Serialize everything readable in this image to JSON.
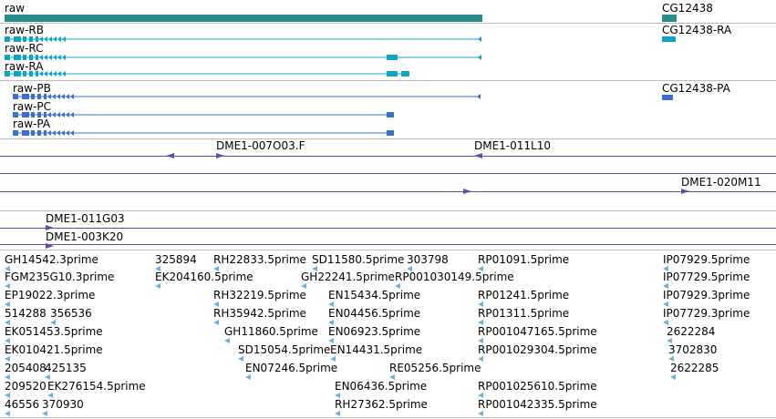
{
  "colors": {
    "gene": "#2a8c8c",
    "transcript": "#11a3c0",
    "protein": "#3a6fd0",
    "clone": "#6a4aa8",
    "est": "#6fb0d8",
    "separator": "#bdbdbd"
  },
  "genes": [
    {
      "label": "raw",
      "icon": "gene-bar"
    },
    {
      "label": "CG12438",
      "icon": "gene-bar"
    }
  ],
  "transcripts": [
    {
      "label": "raw-RB"
    },
    {
      "label": "raw-RC"
    },
    {
      "label": "raw-RA"
    },
    {
      "label": "CG12438-RA"
    }
  ],
  "proteins": [
    {
      "label": "raw-PB"
    },
    {
      "label": "raw-PC"
    },
    {
      "label": "raw-PA"
    },
    {
      "label": "CG12438-PA"
    }
  ],
  "clones": [
    {
      "label": "DME1-007O03.F"
    },
    {
      "label": "DME1-011L10"
    },
    {
      "label": "DME1-020M11"
    },
    {
      "label": "DME1-011G03"
    },
    {
      "label": "DME1-003K20"
    }
  ],
  "ests": [
    "GH14542.3prime",
    "325894",
    "RH22833.5prime",
    "SD11580.5prime",
    "303798",
    "RP01091.5prime",
    "IP07929.5prime",
    "EK204160.5prime",
    "FGM235G10.3prime",
    "GH22241.5prime",
    "RP001030149.5prime",
    "IP07729.5prime",
    "EP19022.3prime",
    "RH32219.5prime",
    "EN15434.5prime",
    "RP01241.5prime",
    "IP07929.3prime",
    "514288",
    "356536",
    "RH35942.5prime",
    "EN04456.5prime",
    "RP01311.5prime",
    "IP07729.3prime",
    "EK051453.5prime",
    "GH11860.5prime",
    "EN06923.5prime",
    "RP001047165.5prime",
    "2622284",
    "EK010421.5prime",
    "SD15054.5prime",
    "EN14431.5prime",
    "RP001029304.5prime",
    "3702830",
    "205408",
    "425135",
    "EN07246.5prime",
    "RE05256.5prime",
    "2622285",
    "209520",
    "EK276154.5prime",
    "EN06436.5prime",
    "RP001025610.5prime",
    "46556",
    "370930",
    "RH27362.5prime",
    "RP001042335.5prime"
  ]
}
